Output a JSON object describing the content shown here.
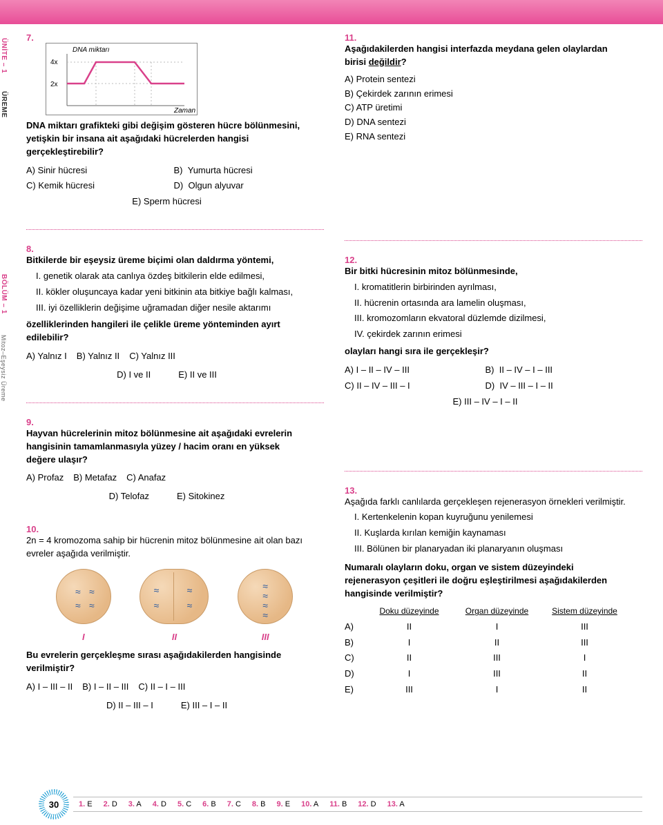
{
  "colors": {
    "accent": "#d9408a",
    "band_top": "#f285b6",
    "band_bottom": "#e84d97",
    "chart_line": "#d9408a",
    "cell_fill_light": "#f5d9b8",
    "cell_fill_dark": "#e6b886",
    "cell_border": "#c99a66",
    "chrom": "#2a5aa0",
    "sunburst": "#3aa9d8"
  },
  "side": {
    "unit": "ÜNİTE – 1",
    "topic": "ÜREME",
    "section": "BÖLÜM – 1",
    "subsection": "Mitoz–Eşeysiz Üreme"
  },
  "chart7": {
    "y_label": "DNA miktarı",
    "x_label": "Zaman",
    "y_ticks": [
      "4x",
      "2x"
    ],
    "line_color": "#d9408a",
    "plateau_low": 2,
    "plateau_high": 4,
    "segments": [
      "flat_low",
      "rise",
      "flat_high",
      "fall",
      "flat_low"
    ]
  },
  "q7": {
    "num": "7.",
    "stem": "DNA miktarı grafikteki gibi değişim gösteren hücre bölünmesini, yetişkin bir insana ait aşağıdaki hücrelerden hangisi gerçekleştirebilir?",
    "opts": {
      "A": "Sinir hücresi",
      "B": "Yumurta hücresi",
      "C": "Kemik hücresi",
      "D": "Olgun alyuvar",
      "E": "Sperm hücresi"
    }
  },
  "q8": {
    "num": "8.",
    "lead": "Bitkilerde bir eşeysiz üreme biçimi olan daldırma yöntemi,",
    "i": "genetik olarak ata canlıya özdeş bitkilerin elde edilmesi,",
    "ii": "kökler oluşuncaya kadar yeni bitkinin ata bitkiye bağlı kalması,",
    "iii": "iyi özelliklerin değişime uğramadan diğer nesile aktarımı",
    "stem2": "özelliklerinden hangileri ile çelikle üreme yönteminden ayırt edilebilir?",
    "opts": {
      "A": "Yalnız I",
      "B": "Yalnız II",
      "C": "Yalnız III",
      "D": "I ve II",
      "E": "II ve III"
    }
  },
  "q9": {
    "num": "9.",
    "stem": "Hayvan hücrelerinin mitoz bölünmesine ait aşağıdaki evrelerin hangisinin tamamlanmasıyla yüzey / hacim oranı en yüksek değere ulaşır?",
    "opts": {
      "A": "Profaz",
      "B": "Metafaz",
      "C": "Anafaz",
      "D": "Telofaz",
      "E": "Sitokinez"
    }
  },
  "q10": {
    "num": "10.",
    "lead": "2n = 4 kromozoma sahip bir hücrenin mitoz bölünmesine ait olan bazı evreler aşağıda verilmiştir.",
    "labels": [
      "I",
      "II",
      "III"
    ],
    "stem2": "Bu evrelerin gerçekleşme sırası aşağıdakilerden hangisinde verilmiştir?",
    "opts": {
      "A": "I – III – II",
      "B": "I – II – III",
      "C": "II – I – III",
      "D": "II – III – I",
      "E": "III – I – II"
    }
  },
  "q11": {
    "num": "11.",
    "stem_a": "Aşağıdakilerden hangisi interfazda meydana gelen olaylardan birisi ",
    "stem_u": "değildir",
    "stem_b": "?",
    "opts": {
      "A": "Protein sentezi",
      "B": "Çekirdek zarının erimesi",
      "C": "ATP üretimi",
      "D": "DNA sentezi",
      "E": "RNA sentezi"
    }
  },
  "q12": {
    "num": "12.",
    "lead": "Bir bitki hücresinin mitoz bölünmesinde,",
    "i": "kromatitlerin birbirinden ayrılması,",
    "ii": "hücrenin ortasında ara lamelin oluşması,",
    "iii": "kromozomların ekvatoral düzlemde dizilmesi,",
    "iv": "çekirdek zarının erimesi",
    "stem2": "olayları hangi sıra ile gerçekleşir?",
    "opts": {
      "A": "I – II – IV – III",
      "B": "II – IV – I – III",
      "C": "II – IV – III – I",
      "D": "IV – III – I – II",
      "E": "III – IV – I – II"
    }
  },
  "q13": {
    "num": "13.",
    "lead": "Aşağıda farklı canlılarda gerçekleşen rejenerasyon örnekleri verilmiştir.",
    "i": "Kertenkelenin kopan kuyruğunu yenilemesi",
    "ii": "Kuşlarda kırılan kemiğin kaynaması",
    "iii": "Bölünen bir planaryadan iki planaryanın oluşması",
    "stem2": "Numaralı olayların doku, organ ve sistem düzeyindeki rejenerasyon çeşitleri ile doğru eşleştirilmesi aşağıdakilerden hangisinde verilmiştir?",
    "heads": [
      "Doku düzeyinde",
      "Organ düzeyinde",
      "Sistem düzeyinde"
    ],
    "rows": [
      {
        "lab": "A)",
        "c": [
          "II",
          "I",
          "III"
        ]
      },
      {
        "lab": "B)",
        "c": [
          "I",
          "II",
          "III"
        ]
      },
      {
        "lab": "C)",
        "c": [
          "II",
          "III",
          "I"
        ]
      },
      {
        "lab": "D)",
        "c": [
          "I",
          "III",
          "II"
        ]
      },
      {
        "lab": "E)",
        "c": [
          "III",
          "I",
          "II"
        ]
      }
    ]
  },
  "answers": {
    "page": "30",
    "items": [
      {
        "n": "1.",
        "a": "E"
      },
      {
        "n": "2.",
        "a": "D"
      },
      {
        "n": "3.",
        "a": "A"
      },
      {
        "n": "4.",
        "a": "D"
      },
      {
        "n": "5.",
        "a": "C"
      },
      {
        "n": "6.",
        "a": "B"
      },
      {
        "n": "7.",
        "a": "C"
      },
      {
        "n": "8.",
        "a": "B"
      },
      {
        "n": "9.",
        "a": "E"
      },
      {
        "n": "10.",
        "a": "A"
      },
      {
        "n": "11.",
        "a": "B"
      },
      {
        "n": "12.",
        "a": "D"
      },
      {
        "n": "13.",
        "a": "A"
      }
    ]
  }
}
